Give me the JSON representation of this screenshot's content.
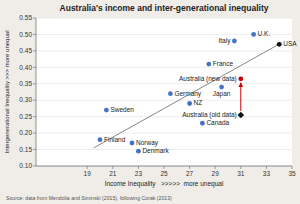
{
  "chart_data": {
    "type": "scatter",
    "title": "Australia's income and inter-generational inequality",
    "x_label": "Income Inequality   >>>>>  more unequal",
    "y_label": "Intergenerational Inequality >>> more unequal",
    "source": "Source: data from Mendolia and Siminski (2015), following Corak (2013)",
    "xlim": [
      15,
      35
    ],
    "ylim": [
      0.1,
      0.55
    ],
    "xticks": [
      19,
      21,
      23,
      25,
      27,
      29,
      31,
      33,
      35
    ],
    "yticks": [
      {
        "value": 0.1,
        "label": "0.10"
      },
      0.15,
      {
        "value": 0.2,
        "label": "0.20"
      },
      0.25,
      {
        "value": 0.3,
        "label": "0.30"
      },
      0.35,
      {
        "value": 0.4,
        "label": "0.40"
      },
      0.45,
      {
        "value": 0.5,
        "label": "0.50"
      },
      0.55
    ],
    "grid": "y",
    "points": [
      {
        "name": "Finland",
        "x": 20.0,
        "y": 0.18,
        "color": "#4472c4",
        "marker": "circle"
      },
      {
        "name": "Sweden",
        "x": 20.5,
        "y": 0.27,
        "color": "#4472c4",
        "marker": "circle"
      },
      {
        "name": "Norway",
        "x": 22.5,
        "y": 0.17,
        "color": "#4472c4",
        "marker": "circle"
      },
      {
        "name": "Denmark",
        "x": 23.0,
        "y": 0.145,
        "color": "#4472c4",
        "marker": "circle"
      },
      {
        "name": "Germany",
        "x": 25.5,
        "y": 0.32,
        "color": "#4472c4",
        "marker": "circle"
      },
      {
        "name": "NZ",
        "x": 27.0,
        "y": 0.29,
        "color": "#4472c4",
        "marker": "circle"
      },
      {
        "name": "France",
        "x": 28.5,
        "y": 0.41,
        "color": "#4472c4",
        "marker": "circle"
      },
      {
        "name": "Japan",
        "x": 29.5,
        "y": 0.34,
        "color": "#4472c4",
        "marker": "circle"
      },
      {
        "name": "Canada",
        "x": 28.0,
        "y": 0.23,
        "color": "#4472c4",
        "marker": "circle"
      },
      {
        "name": "Italy",
        "x": 30.5,
        "y": 0.48,
        "color": "#4472c4",
        "marker": "circle"
      },
      {
        "name": "U.K.",
        "x": 32.0,
        "y": 0.5,
        "color": "#4472c4",
        "marker": "circle"
      },
      {
        "name": "USA",
        "x": 34.0,
        "y": 0.47,
        "color": "#111111",
        "marker": "circle"
      },
      {
        "name": "Australia (old data)",
        "x": 31.0,
        "y": 0.255,
        "color": "#111111",
        "marker": "diamond"
      },
      {
        "name": "Australia (new data)",
        "x": 31.0,
        "y": 0.365,
        "color": "#cc0000",
        "marker": "circle"
      }
    ],
    "trendline": {
      "x": [
        19.5,
        34.2
      ],
      "y": [
        0.155,
        0.475
      ],
      "color": "#888888"
    },
    "annotations": [
      {
        "type": "arrow",
        "x": 31.0,
        "y_from": 0.255,
        "y_to": 0.365,
        "color": "#cc0000"
      }
    ]
  }
}
